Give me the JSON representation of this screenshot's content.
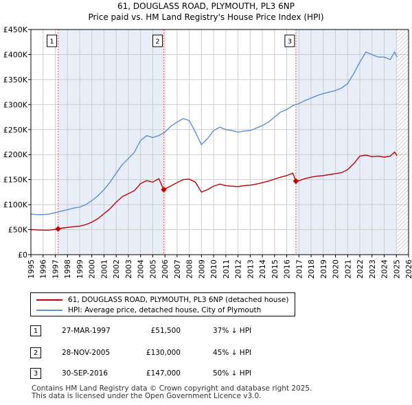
{
  "chart_data": {
    "type": "line",
    "title": "61, DOUGLASS ROAD, PLYMOUTH, PL3 6NP",
    "subtitle": "Price paid vs. HM Land Registry's House Price Index (HPI)",
    "xlabel": "",
    "ylabel": "",
    "xlim": [
      1995,
      2026
    ],
    "ylim": [
      0,
      450000
    ],
    "y_ticks": [
      0,
      50000,
      100000,
      150000,
      200000,
      250000,
      300000,
      350000,
      400000,
      450000
    ],
    "y_tick_labels": [
      "£0",
      "£50K",
      "£100K",
      "£150K",
      "£200K",
      "£250K",
      "£300K",
      "£350K",
      "£400K",
      "£450K"
    ],
    "x_tick_labels": [
      "1995",
      "1996",
      "1997",
      "1998",
      "1999",
      "2000",
      "2001",
      "2002",
      "2003",
      "2004",
      "2005",
      "2006",
      "2007",
      "2008",
      "2009",
      "2010",
      "2011",
      "2012",
      "2013",
      "2014",
      "2015",
      "2016",
      "2017",
      "2018",
      "2019",
      "2020",
      "2021",
      "2022",
      "2023",
      "2024",
      "2025",
      "2026"
    ],
    "grid": true,
    "data_end_year": 2025.05,
    "colors": {
      "property": "#c00000",
      "hpi": "#5b8ed6",
      "shade": "#e8eef8",
      "grid": "#cccccc",
      "marker_line": "#e06060",
      "hatch": "#aaaaaa"
    },
    "series": [
      {
        "name": "61, DOUGLASS ROAD, PLYMOUTH, PL3 6NP (detached house)",
        "x": [
          1995,
          1995.5,
          1996,
          1996.5,
          1997.23,
          1997.5,
          1998,
          1998.5,
          1999,
          1999.5,
          2000,
          2000.5,
          2001,
          2001.5,
          2002,
          2002.5,
          2003,
          2003.5,
          2004,
          2004.5,
          2005,
          2005.5,
          2005.9,
          2006.3,
          2007,
          2007.5,
          2008,
          2008.5,
          2009,
          2009.5,
          2010,
          2010.5,
          2011,
          2011.5,
          2012,
          2012.5,
          2013,
          2013.5,
          2014,
          2014.5,
          2015,
          2015.5,
          2016,
          2016.5,
          2016.75,
          2017,
          2017.5,
          2018,
          2018.5,
          2019,
          2019.5,
          2020,
          2020.5,
          2021,
          2021.5,
          2022,
          2022.5,
          2023,
          2023.5,
          2024,
          2024.5,
          2024.85,
          2025.05
        ],
        "values": [
          50000,
          49500,
          49000,
          49000,
          51500,
          53000,
          54500,
          56000,
          57000,
          60000,
          65000,
          72000,
          82000,
          92000,
          105000,
          116000,
          122000,
          128000,
          142000,
          148000,
          145000,
          152000,
          130000,
          135000,
          144000,
          150000,
          151000,
          145000,
          125000,
          130000,
          137000,
          141000,
          138000,
          137000,
          136000,
          138000,
          139000,
          141000,
          144000,
          147000,
          151000,
          155000,
          158000,
          163000,
          147000,
          148000,
          152000,
          155000,
          157000,
          158000,
          160000,
          162000,
          164000,
          170000,
          182000,
          197000,
          199000,
          196000,
          197000,
          195000,
          197000,
          205000,
          198000
        ]
      },
      {
        "name": "HPI: Average price, detached house, City of Plymouth",
        "x": [
          1995,
          1995.5,
          1996,
          1996.5,
          1997,
          1997.5,
          1998,
          1998.5,
          1999,
          1999.5,
          2000,
          2000.5,
          2001,
          2001.5,
          2002,
          2002.5,
          2003,
          2003.5,
          2004,
          2004.5,
          2005,
          2005.5,
          2006,
          2006.5,
          2007,
          2007.5,
          2008,
          2008.5,
          2009,
          2009.5,
          2010,
          2010.5,
          2011,
          2011.5,
          2012,
          2012.5,
          2013,
          2013.5,
          2014,
          2014.5,
          2015,
          2015.5,
          2016,
          2016.5,
          2017,
          2017.5,
          2018,
          2018.5,
          2019,
          2019.5,
          2020,
          2020.5,
          2021,
          2021.5,
          2022,
          2022.5,
          2023,
          2023.5,
          2024,
          2024.5,
          2024.85,
          2025.05
        ],
        "values": [
          81000,
          80000,
          80000,
          81000,
          84000,
          87000,
          90000,
          93000,
          95000,
          100000,
          108000,
          118000,
          130000,
          145000,
          163000,
          180000,
          192000,
          205000,
          228000,
          238000,
          234000,
          238000,
          245000,
          257000,
          265000,
          272000,
          268000,
          245000,
          220000,
          232000,
          248000,
          255000,
          250000,
          248000,
          245000,
          247000,
          248000,
          253000,
          258000,
          265000,
          275000,
          285000,
          290000,
          298000,
          302000,
          308000,
          313000,
          318000,
          322000,
          325000,
          328000,
          333000,
          342000,
          362000,
          385000,
          405000,
          400000,
          395000,
          395000,
          390000,
          405000,
          395000
        ]
      }
    ],
    "sales": [
      {
        "label": "1",
        "year": 1997.23,
        "price": 51500
      },
      {
        "label": "2",
        "year": 2005.91,
        "price": 130000
      },
      {
        "label": "3",
        "year": 2016.75,
        "price": 147000
      }
    ],
    "shaded_ranges": [
      [
        1997.23,
        2005.91
      ],
      [
        2016.75,
        2025.05
      ]
    ]
  },
  "legend": {
    "property_label": "61, DOUGLASS ROAD, PLYMOUTH, PL3 6NP (detached house)",
    "hpi_label": "HPI: Average price, detached house, City of Plymouth"
  },
  "transactions": [
    {
      "num": "1",
      "date": "27-MAR-1997",
      "price": "£51,500",
      "delta": "37% ↓ HPI"
    },
    {
      "num": "2",
      "date": "28-NOV-2005",
      "price": "£130,000",
      "delta": "45% ↓ HPI"
    },
    {
      "num": "3",
      "date": "30-SEP-2016",
      "price": "£147,000",
      "delta": "50% ↓ HPI"
    }
  ],
  "footer": {
    "line1": "Contains HM Land Registry data © Crown copyright and database right 2025.",
    "line2": "This data is licensed under the Open Government Licence v3.0."
  }
}
